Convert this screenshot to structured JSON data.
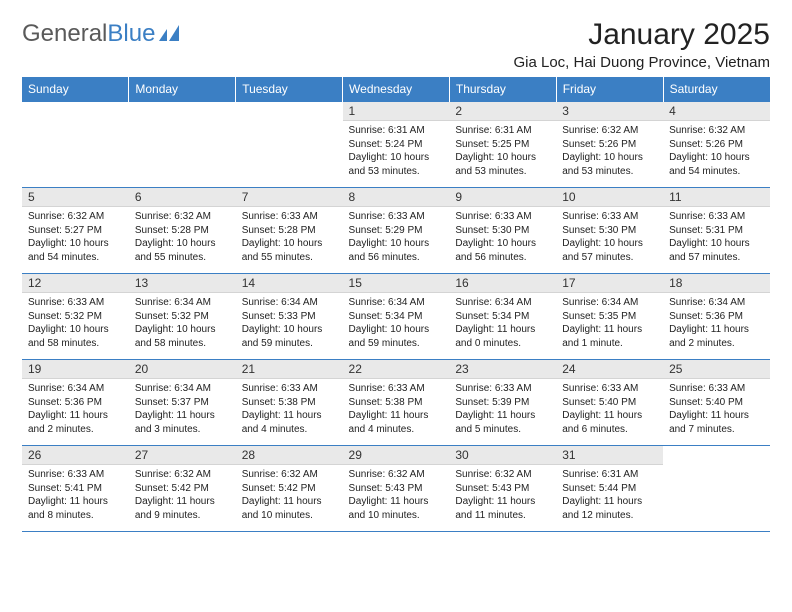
{
  "brand": {
    "part1": "General",
    "part2": "Blue"
  },
  "title": "January 2025",
  "location": "Gia Loc, Hai Duong Province, Vietnam",
  "colors": {
    "header_bg": "#3b7fc4",
    "header_text": "#ffffff",
    "daynum_bg": "#e9e9e9",
    "rule": "#3b7fc4",
    "body_text": "#222222",
    "logo_gray": "#5a5a5a",
    "logo_blue": "#3b7fc4",
    "page_bg": "#ffffff"
  },
  "typography": {
    "title_fontsize": 30,
    "location_fontsize": 15,
    "dayheader_fontsize": 12,
    "daynum_fontsize": 12,
    "body_fontsize": 10
  },
  "day_headers": [
    "Sunday",
    "Monday",
    "Tuesday",
    "Wednesday",
    "Thursday",
    "Friday",
    "Saturday"
  ],
  "weeks": [
    [
      {
        "n": "",
        "sr": "",
        "ss": "",
        "dl": ""
      },
      {
        "n": "",
        "sr": "",
        "ss": "",
        "dl": ""
      },
      {
        "n": "",
        "sr": "",
        "ss": "",
        "dl": ""
      },
      {
        "n": "1",
        "sr": "Sunrise: 6:31 AM",
        "ss": "Sunset: 5:24 PM",
        "dl": "Daylight: 10 hours and 53 minutes."
      },
      {
        "n": "2",
        "sr": "Sunrise: 6:31 AM",
        "ss": "Sunset: 5:25 PM",
        "dl": "Daylight: 10 hours and 53 minutes."
      },
      {
        "n": "3",
        "sr": "Sunrise: 6:32 AM",
        "ss": "Sunset: 5:26 PM",
        "dl": "Daylight: 10 hours and 53 minutes."
      },
      {
        "n": "4",
        "sr": "Sunrise: 6:32 AM",
        "ss": "Sunset: 5:26 PM",
        "dl": "Daylight: 10 hours and 54 minutes."
      }
    ],
    [
      {
        "n": "5",
        "sr": "Sunrise: 6:32 AM",
        "ss": "Sunset: 5:27 PM",
        "dl": "Daylight: 10 hours and 54 minutes."
      },
      {
        "n": "6",
        "sr": "Sunrise: 6:32 AM",
        "ss": "Sunset: 5:28 PM",
        "dl": "Daylight: 10 hours and 55 minutes."
      },
      {
        "n": "7",
        "sr": "Sunrise: 6:33 AM",
        "ss": "Sunset: 5:28 PM",
        "dl": "Daylight: 10 hours and 55 minutes."
      },
      {
        "n": "8",
        "sr": "Sunrise: 6:33 AM",
        "ss": "Sunset: 5:29 PM",
        "dl": "Daylight: 10 hours and 56 minutes."
      },
      {
        "n": "9",
        "sr": "Sunrise: 6:33 AM",
        "ss": "Sunset: 5:30 PM",
        "dl": "Daylight: 10 hours and 56 minutes."
      },
      {
        "n": "10",
        "sr": "Sunrise: 6:33 AM",
        "ss": "Sunset: 5:30 PM",
        "dl": "Daylight: 10 hours and 57 minutes."
      },
      {
        "n": "11",
        "sr": "Sunrise: 6:33 AM",
        "ss": "Sunset: 5:31 PM",
        "dl": "Daylight: 10 hours and 57 minutes."
      }
    ],
    [
      {
        "n": "12",
        "sr": "Sunrise: 6:33 AM",
        "ss": "Sunset: 5:32 PM",
        "dl": "Daylight: 10 hours and 58 minutes."
      },
      {
        "n": "13",
        "sr": "Sunrise: 6:34 AM",
        "ss": "Sunset: 5:32 PM",
        "dl": "Daylight: 10 hours and 58 minutes."
      },
      {
        "n": "14",
        "sr": "Sunrise: 6:34 AM",
        "ss": "Sunset: 5:33 PM",
        "dl": "Daylight: 10 hours and 59 minutes."
      },
      {
        "n": "15",
        "sr": "Sunrise: 6:34 AM",
        "ss": "Sunset: 5:34 PM",
        "dl": "Daylight: 10 hours and 59 minutes."
      },
      {
        "n": "16",
        "sr": "Sunrise: 6:34 AM",
        "ss": "Sunset: 5:34 PM",
        "dl": "Daylight: 11 hours and 0 minutes."
      },
      {
        "n": "17",
        "sr": "Sunrise: 6:34 AM",
        "ss": "Sunset: 5:35 PM",
        "dl": "Daylight: 11 hours and 1 minute."
      },
      {
        "n": "18",
        "sr": "Sunrise: 6:34 AM",
        "ss": "Sunset: 5:36 PM",
        "dl": "Daylight: 11 hours and 2 minutes."
      }
    ],
    [
      {
        "n": "19",
        "sr": "Sunrise: 6:34 AM",
        "ss": "Sunset: 5:36 PM",
        "dl": "Daylight: 11 hours and 2 minutes."
      },
      {
        "n": "20",
        "sr": "Sunrise: 6:34 AM",
        "ss": "Sunset: 5:37 PM",
        "dl": "Daylight: 11 hours and 3 minutes."
      },
      {
        "n": "21",
        "sr": "Sunrise: 6:33 AM",
        "ss": "Sunset: 5:38 PM",
        "dl": "Daylight: 11 hours and 4 minutes."
      },
      {
        "n": "22",
        "sr": "Sunrise: 6:33 AM",
        "ss": "Sunset: 5:38 PM",
        "dl": "Daylight: 11 hours and 4 minutes."
      },
      {
        "n": "23",
        "sr": "Sunrise: 6:33 AM",
        "ss": "Sunset: 5:39 PM",
        "dl": "Daylight: 11 hours and 5 minutes."
      },
      {
        "n": "24",
        "sr": "Sunrise: 6:33 AM",
        "ss": "Sunset: 5:40 PM",
        "dl": "Daylight: 11 hours and 6 minutes."
      },
      {
        "n": "25",
        "sr": "Sunrise: 6:33 AM",
        "ss": "Sunset: 5:40 PM",
        "dl": "Daylight: 11 hours and 7 minutes."
      }
    ],
    [
      {
        "n": "26",
        "sr": "Sunrise: 6:33 AM",
        "ss": "Sunset: 5:41 PM",
        "dl": "Daylight: 11 hours and 8 minutes."
      },
      {
        "n": "27",
        "sr": "Sunrise: 6:32 AM",
        "ss": "Sunset: 5:42 PM",
        "dl": "Daylight: 11 hours and 9 minutes."
      },
      {
        "n": "28",
        "sr": "Sunrise: 6:32 AM",
        "ss": "Sunset: 5:42 PM",
        "dl": "Daylight: 11 hours and 10 minutes."
      },
      {
        "n": "29",
        "sr": "Sunrise: 6:32 AM",
        "ss": "Sunset: 5:43 PM",
        "dl": "Daylight: 11 hours and 10 minutes."
      },
      {
        "n": "30",
        "sr": "Sunrise: 6:32 AM",
        "ss": "Sunset: 5:43 PM",
        "dl": "Daylight: 11 hours and 11 minutes."
      },
      {
        "n": "31",
        "sr": "Sunrise: 6:31 AM",
        "ss": "Sunset: 5:44 PM",
        "dl": "Daylight: 11 hours and 12 minutes."
      },
      {
        "n": "",
        "sr": "",
        "ss": "",
        "dl": ""
      }
    ]
  ]
}
